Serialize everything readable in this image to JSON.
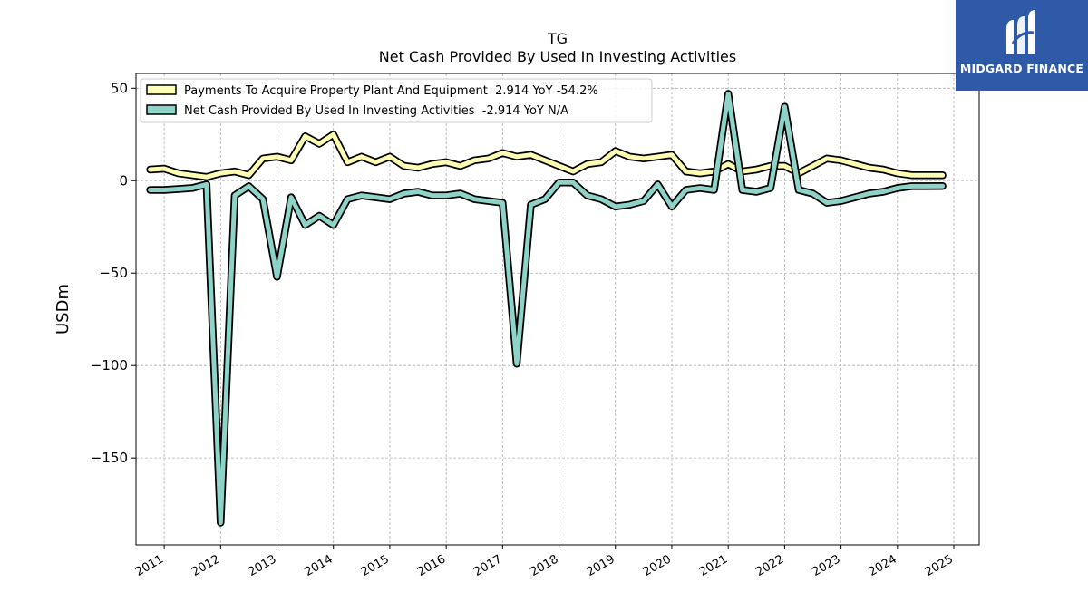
{
  "chart_data": {
    "type": "line",
    "title": "TG",
    "subtitle": "Net Cash Provided By Used In Investing Activities",
    "ylabel": "USDm",
    "xlabel": "",
    "x_ticks": [
      "2011",
      "2012",
      "2013",
      "2014",
      "2015",
      "2016",
      "2017",
      "2018",
      "2019",
      "2020",
      "2021",
      "2022",
      "2023",
      "2024",
      "2025"
    ],
    "y_ticks": [
      "50",
      "0",
      "−50",
      "−100",
      "−150"
    ],
    "y_tick_values": [
      50,
      0,
      -50,
      -100,
      -150
    ],
    "xlim": [
      2010.5,
      2025.45
    ],
    "ylim": [
      -197,
      58
    ],
    "grid": true,
    "legend_position": "top-left",
    "x": [
      2010.75,
      2011.0,
      2011.25,
      2011.5,
      2011.75,
      2012.0,
      2012.25,
      2012.5,
      2012.75,
      2013.0,
      2013.25,
      2013.5,
      2013.75,
      2014.0,
      2014.25,
      2014.5,
      2014.75,
      2015.0,
      2015.25,
      2015.5,
      2015.75,
      2016.0,
      2016.25,
      2016.5,
      2016.75,
      2017.0,
      2017.25,
      2017.5,
      2017.75,
      2018.0,
      2018.25,
      2018.5,
      2018.75,
      2019.0,
      2019.25,
      2019.5,
      2019.75,
      2020.0,
      2020.25,
      2020.5,
      2020.75,
      2021.0,
      2021.25,
      2021.5,
      2021.75,
      2022.0,
      2022.25,
      2022.5,
      2022.75,
      2023.0,
      2023.25,
      2023.5,
      2023.75,
      2024.0,
      2024.25,
      2024.5,
      2024.8
    ],
    "series": [
      {
        "name": "Payments To Acquire Property Plant And Equipment  2.914 YoY -54.2%",
        "color": "#ffffb3",
        "values": [
          6,
          6.5,
          4,
          3,
          2,
          4,
          5,
          3,
          12,
          13,
          11,
          24,
          20,
          25,
          10,
          13,
          10,
          13,
          8,
          7,
          9,
          10,
          8,
          11,
          12,
          15,
          13,
          14,
          11,
          8,
          5,
          9,
          10,
          16,
          13,
          12,
          13,
          14,
          5,
          4,
          5,
          9,
          5,
          6,
          8,
          8,
          4,
          8,
          12,
          11,
          9,
          7,
          6,
          4,
          3,
          3,
          2.914
        ]
      },
      {
        "name": "Net Cash Provided By Used In Investing Activities  -2.914 YoY N/A",
        "color": "#8dd3c7",
        "values": [
          -5,
          -5,
          -4.5,
          -4,
          -2,
          -185,
          -8,
          -3,
          -10,
          -52,
          -9,
          -24,
          -19,
          -24,
          -10,
          -8,
          -9,
          -10,
          -7,
          -6,
          -8,
          -8,
          -7,
          -10,
          -11,
          -12,
          -99,
          -13,
          -10,
          -1,
          -1,
          -8,
          -10,
          -14,
          -13,
          -11,
          -2,
          -14,
          -5,
          -4,
          -5,
          47,
          -5,
          -6,
          -4,
          40,
          -5,
          -7,
          -12,
          -11,
          -9,
          -7,
          -6,
          -4,
          -3,
          -3,
          -2.914
        ]
      }
    ]
  },
  "logo": {
    "text": "MIDGARD FINANCE",
    "icon": "midgard-m-icon"
  }
}
